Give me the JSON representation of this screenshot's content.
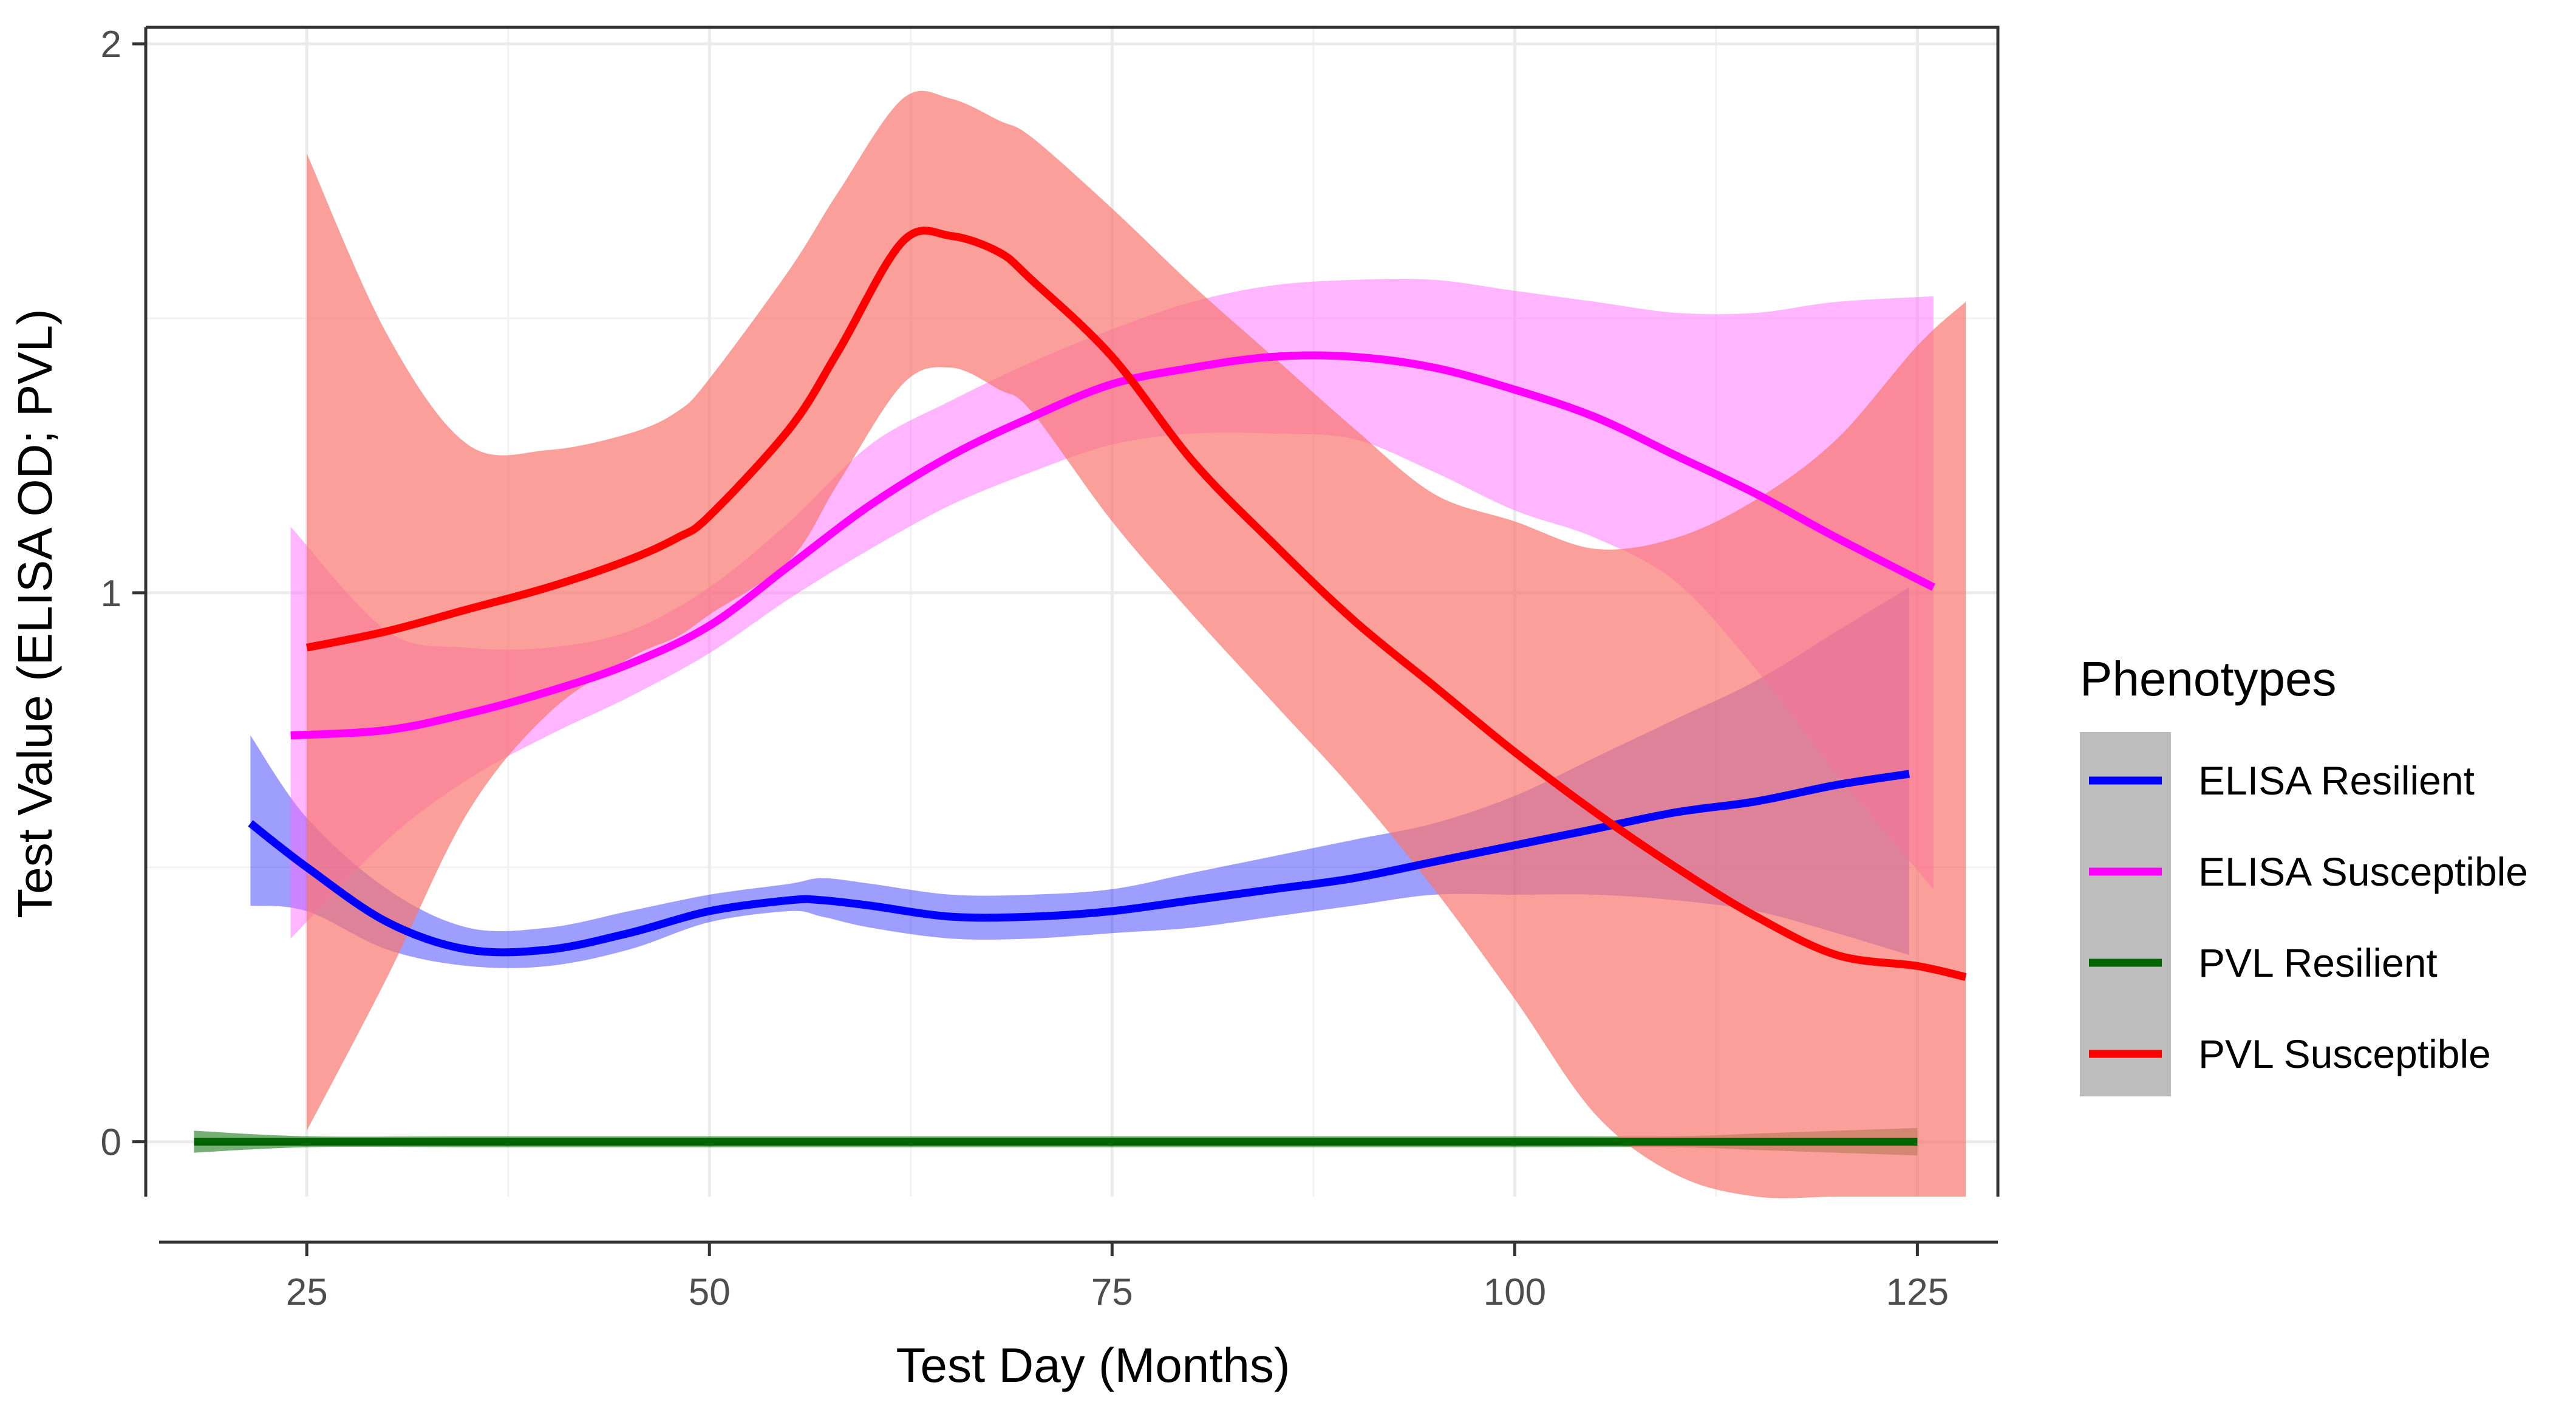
{
  "chart_data": {
    "type": "line",
    "title": "",
    "xlabel": "Test Day (Months)",
    "ylabel": "Test Value (ELISA OD; PVL)",
    "xlim": [
      15,
      130
    ],
    "ylim": [
      -0.1,
      2.03
    ],
    "xticks": [
      25,
      50,
      75,
      100,
      125
    ],
    "yticks": [
      0,
      1,
      2
    ],
    "grid": true,
    "legend": {
      "title": "Phenotypes",
      "placement": "right",
      "entries": [
        "ELISA Resilient",
        "ELISA Susceptible",
        "PVL Resilient",
        "PVL Susceptible"
      ]
    },
    "series": [
      {
        "name": "ELISA Resilient",
        "color": "#0000ff",
        "band_color": "#0000ff",
        "band_opacity": 0.38,
        "x": [
          21.5,
          25,
          30,
          35,
          40,
          45,
          50,
          55,
          57,
          60,
          65,
          70,
          75,
          80,
          85,
          90,
          95,
          100,
          105,
          110,
          115,
          120,
          124.5
        ],
        "y": [
          0.58,
          0.5,
          0.4,
          0.35,
          0.35,
          0.38,
          0.42,
          0.44,
          0.44,
          0.43,
          0.41,
          0.41,
          0.42,
          0.44,
          0.46,
          0.48,
          0.51,
          0.54,
          0.57,
          0.6,
          0.62,
          0.65,
          0.67
        ],
        "lower": [
          0.43,
          0.42,
          0.35,
          0.32,
          0.32,
          0.35,
          0.4,
          0.42,
          0.41,
          0.39,
          0.37,
          0.37,
          0.38,
          0.39,
          0.41,
          0.43,
          0.45,
          0.45,
          0.45,
          0.44,
          0.42,
          0.38,
          0.34
        ],
        "upper": [
          0.74,
          0.59,
          0.46,
          0.39,
          0.39,
          0.42,
          0.45,
          0.47,
          0.48,
          0.47,
          0.45,
          0.45,
          0.46,
          0.49,
          0.52,
          0.55,
          0.58,
          0.63,
          0.7,
          0.77,
          0.84,
          0.93,
          1.01
        ]
      },
      {
        "name": "ELISA Susceptible",
        "color": "#ff00ff",
        "band_color": "#ff66ff",
        "band_opacity": 0.48,
        "x": [
          24,
          30,
          35,
          40,
          45,
          50,
          55,
          60,
          65,
          70,
          75,
          80,
          85,
          90,
          95,
          100,
          105,
          110,
          115,
          120,
          126
        ],
        "y": [
          0.74,
          0.75,
          0.78,
          0.82,
          0.87,
          0.94,
          1.05,
          1.16,
          1.25,
          1.32,
          1.38,
          1.41,
          1.43,
          1.43,
          1.41,
          1.37,
          1.32,
          1.25,
          1.18,
          1.1,
          1.01
        ],
        "lower": [
          0.37,
          0.55,
          0.66,
          0.74,
          0.81,
          0.89,
          0.99,
          1.08,
          1.16,
          1.22,
          1.27,
          1.29,
          1.29,
          1.28,
          1.22,
          1.15,
          1.1,
          1.02,
          0.86,
          0.67,
          0.46
        ],
        "upper": [
          1.12,
          0.93,
          0.9,
          0.9,
          0.93,
          1.01,
          1.13,
          1.27,
          1.35,
          1.42,
          1.48,
          1.53,
          1.56,
          1.57,
          1.57,
          1.55,
          1.53,
          1.51,
          1.51,
          1.53,
          1.54
        ]
      },
      {
        "name": "PVL Resilient",
        "color": "#006400",
        "band_color": "#1a7a1a",
        "band_opacity": 0.6,
        "x": [
          18,
          25,
          35,
          50,
          60,
          70,
          80,
          90,
          100,
          110,
          115,
          120,
          125
        ],
        "y": [
          0.0,
          0.0,
          0.0,
          0.0,
          0.0,
          0.0,
          0.0,
          0.0,
          0.0,
          0.0,
          0.0,
          0.0,
          0.0
        ],
        "lower": [
          -0.02,
          -0.01,
          -0.01,
          -0.01,
          -0.01,
          -0.01,
          -0.01,
          -0.01,
          -0.01,
          -0.01,
          -0.015,
          -0.02,
          -0.025
        ],
        "upper": [
          0.02,
          0.01,
          0.01,
          0.01,
          0.01,
          0.01,
          0.01,
          0.01,
          0.01,
          0.01,
          0.015,
          0.02,
          0.025
        ]
      },
      {
        "name": "PVL Susceptible",
        "color": "#ff0000",
        "band_color": "#f8766d",
        "band_opacity": 0.7,
        "x": [
          25,
          30,
          35,
          40,
          45,
          48,
          50,
          55,
          58,
          62,
          65,
          68,
          70,
          75,
          80,
          85,
          90,
          95,
          100,
          105,
          110,
          115,
          120,
          125,
          128
        ],
        "y": [
          0.9,
          0.93,
          0.97,
          1.01,
          1.06,
          1.1,
          1.14,
          1.3,
          1.44,
          1.64,
          1.65,
          1.62,
          1.57,
          1.43,
          1.24,
          1.09,
          0.95,
          0.83,
          0.71,
          0.6,
          0.5,
          0.41,
          0.34,
          0.32,
          0.3
        ],
        "lower": [
          0.02,
          0.3,
          0.6,
          0.78,
          0.88,
          0.92,
          0.96,
          1.06,
          1.2,
          1.38,
          1.41,
          1.37,
          1.33,
          1.13,
          0.96,
          0.8,
          0.64,
          0.46,
          0.26,
          0.05,
          -0.06,
          -0.1,
          -0.1,
          -0.1,
          -0.1
        ],
        "upper": [
          1.8,
          1.47,
          1.27,
          1.26,
          1.29,
          1.33,
          1.39,
          1.59,
          1.73,
          1.9,
          1.9,
          1.86,
          1.83,
          1.7,
          1.56,
          1.43,
          1.3,
          1.18,
          1.13,
          1.08,
          1.1,
          1.17,
          1.28,
          1.45,
          1.53
        ]
      }
    ]
  }
}
